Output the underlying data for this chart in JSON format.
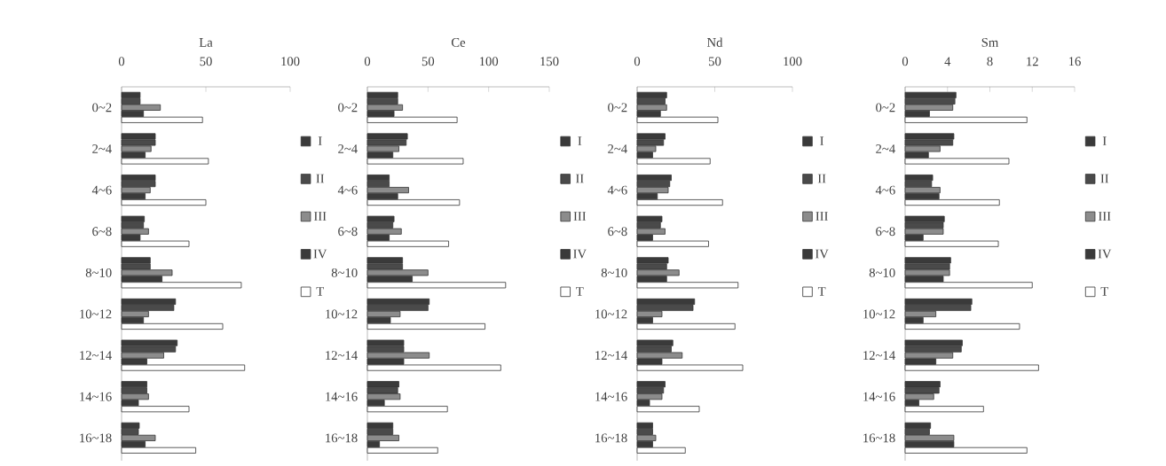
{
  "chart_data": [
    {
      "type": "bar",
      "orientation": "horizontal",
      "title": "La",
      "categories": [
        "0~2",
        "2~4",
        "4~6",
        "6~8",
        "8~10",
        "10~12",
        "12~14",
        "14~16",
        "16~18"
      ],
      "xlim": [
        0,
        100
      ],
      "xticks": [
        0,
        50,
        100
      ],
      "legend": "right",
      "series": [
        {
          "name": "I",
          "color": "#3a3a3a",
          "values": [
            11,
            20,
            20,
            13.5,
            17,
            32,
            33,
            15,
            10.5
          ]
        },
        {
          "name": "II",
          "color": "#4a4a4a",
          "values": [
            11,
            20,
            20,
            13,
            17,
            31,
            32,
            15,
            10
          ]
        },
        {
          "name": "III",
          "color": "#8c8c8c",
          "values": [
            23,
            17.5,
            17,
            16,
            30,
            16,
            25,
            16,
            20
          ]
        },
        {
          "name": "IV",
          "color": "#3a3a3a",
          "values": [
            13,
            14,
            14,
            11,
            24,
            13,
            15,
            10,
            14
          ]
        },
        {
          "name": "T",
          "color": "#ffffff",
          "values": [
            48,
            51.5,
            50,
            40,
            71,
            60,
            73,
            40,
            44
          ]
        }
      ]
    },
    {
      "type": "bar",
      "orientation": "horizontal",
      "title": "Ce",
      "categories": [
        "0~2",
        "2~4",
        "4~6",
        "6~8",
        "8~10",
        "10~12",
        "12~14",
        "14~16",
        "16~18"
      ],
      "xlim": [
        0,
        150
      ],
      "xticks": [
        0,
        50,
        100,
        150
      ],
      "legend": "right",
      "series": [
        {
          "name": "I",
          "color": "#3a3a3a",
          "values": [
            25,
            33,
            18,
            22,
            29,
            51,
            30,
            26,
            21
          ]
        },
        {
          "name": "II",
          "color": "#4a4a4a",
          "values": [
            25,
            32,
            18,
            21,
            29,
            50,
            30,
            25,
            21
          ]
        },
        {
          "name": "III",
          "color": "#8c8c8c",
          "values": [
            29,
            26,
            34,
            28,
            50,
            27,
            51,
            27,
            26
          ]
        },
        {
          "name": "IV",
          "color": "#3a3a3a",
          "values": [
            22,
            21,
            25,
            18,
            37,
            19,
            30,
            14,
            10
          ]
        },
        {
          "name": "T",
          "color": "#ffffff",
          "values": [
            74,
            79,
            76,
            67,
            114,
            97,
            110,
            66,
            58
          ]
        }
      ]
    },
    {
      "type": "bar",
      "orientation": "horizontal",
      "title": "Nd",
      "categories": [
        "0~2",
        "2~4",
        "4~6",
        "6~8",
        "8~10",
        "10~12",
        "12~14",
        "14~16",
        "16~18"
      ],
      "xlim": [
        0,
        100
      ],
      "xticks": [
        0,
        50,
        100
      ],
      "legend": "right",
      "series": [
        {
          "name": "I",
          "color": "#3a3a3a",
          "values": [
            19,
            18,
            22,
            16,
            20,
            37,
            23,
            18,
            10
          ]
        },
        {
          "name": "II",
          "color": "#4a4a4a",
          "values": [
            18,
            17,
            21,
            15,
            19,
            36,
            22,
            17,
            10
          ]
        },
        {
          "name": "III",
          "color": "#8c8c8c",
          "values": [
            19,
            12,
            20,
            18,
            27,
            16,
            29,
            16,
            12
          ]
        },
        {
          "name": "IV",
          "color": "#3a3a3a",
          "values": [
            15,
            10,
            13,
            10,
            19,
            10,
            16,
            8,
            10
          ]
        },
        {
          "name": "T",
          "color": "#ffffff",
          "values": [
            52,
            47,
            55,
            46,
            65,
            63,
            68,
            40,
            31
          ]
        }
      ]
    },
    {
      "type": "bar",
      "orientation": "horizontal",
      "title": "Sm",
      "categories": [
        "0~2",
        "2~4",
        "4~6",
        "6~8",
        "8~10",
        "10~12",
        "12~14",
        "14~16",
        "16~18"
      ],
      "xlim": [
        0,
        16
      ],
      "xticks": [
        0,
        4,
        8,
        12,
        16
      ],
      "legend": "right",
      "series": [
        {
          "name": "I",
          "color": "#3a3a3a",
          "values": [
            4.8,
            4.6,
            2.6,
            3.7,
            4.3,
            6.3,
            5.4,
            3.3,
            2.4
          ]
        },
        {
          "name": "II",
          "color": "#4a4a4a",
          "values": [
            4.7,
            4.5,
            2.5,
            3.6,
            4.2,
            6.2,
            5.3,
            3.2,
            2.3
          ]
        },
        {
          "name": "III",
          "color": "#8c8c8c",
          "values": [
            4.5,
            3.3,
            3.3,
            3.6,
            4.2,
            2.9,
            4.5,
            2.7,
            4.6
          ]
        },
        {
          "name": "IV",
          "color": "#3a3a3a",
          "values": [
            2.3,
            2.2,
            3.2,
            1.7,
            3.6,
            1.7,
            2.9,
            1.3,
            4.6
          ]
        },
        {
          "name": "T",
          "color": "#ffffff",
          "values": [
            11.5,
            9.8,
            8.9,
            8.8,
            12.0,
            10.8,
            12.6,
            7.4,
            11.5
          ]
        }
      ]
    }
  ]
}
